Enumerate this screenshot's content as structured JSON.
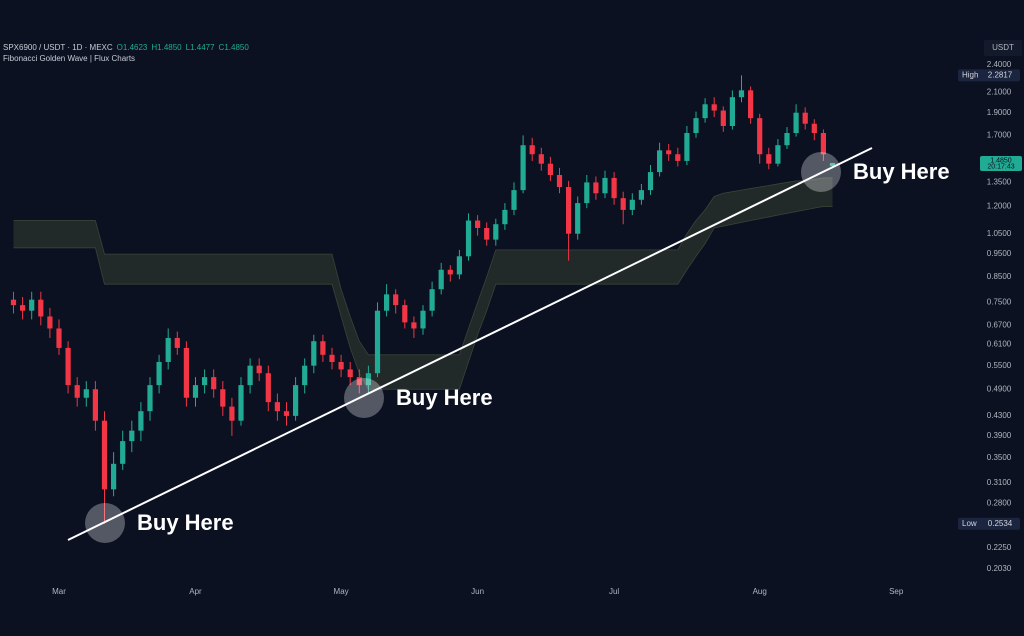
{
  "chart_data": {
    "type": "candlestick",
    "symbol": "SPX6900 / USDT · 1D · MEXC",
    "ohlc_legend": [
      "O1.4623",
      "H1.4850",
      "L1.4477",
      "C1.4850"
    ],
    "indicator": "Fibonacci Golden Wave | Flux Charts",
    "currency": "USDT",
    "categories": [
      null,
      null,
      null,
      null,
      null,
      "Mar",
      null,
      null,
      null,
      null,
      null,
      null,
      null,
      null,
      null,
      null,
      null,
      null,
      null,
      null,
      "Apr",
      null,
      null,
      null,
      null,
      null,
      null,
      null,
      null,
      null,
      null,
      null,
      null,
      null,
      null,
      null,
      "May",
      null,
      null,
      null,
      null,
      null,
      null,
      null,
      null,
      null,
      null,
      null,
      null,
      null,
      null,
      "Jun",
      null,
      null,
      null,
      null,
      null,
      null,
      null,
      null,
      null,
      null,
      null,
      null,
      null,
      null,
      "Jul",
      null,
      null,
      null,
      null,
      null,
      null,
      null,
      null,
      null,
      null,
      null,
      null,
      null,
      null,
      null,
      "Aug",
      null,
      null,
      null,
      null,
      null,
      null,
      null,
      null,
      null,
      null,
      null,
      null,
      null,
      null,
      "Sep"
    ],
    "open": [
      0.76,
      0.74,
      0.72,
      0.76,
      0.7,
      0.66,
      0.6,
      0.5,
      0.47,
      0.49,
      0.42,
      0.3,
      0.34,
      0.38,
      0.4,
      0.44,
      0.5,
      0.56,
      0.63,
      0.6,
      0.47,
      0.5,
      0.52,
      0.49,
      0.45,
      0.42,
      0.5,
      0.55,
      0.53,
      0.46,
      0.44,
      0.43,
      0.5,
      0.55,
      0.62,
      0.58,
      0.56,
      0.54,
      0.52,
      0.5,
      0.53,
      0.72,
      0.78,
      0.74,
      0.68,
      0.66,
      0.72,
      0.8,
      0.88,
      0.86,
      0.94,
      1.12,
      1.08,
      1.02,
      1.1,
      1.18,
      1.3,
      1.62,
      1.55,
      1.48,
      1.4,
      1.32,
      1.05,
      1.22,
      1.35,
      1.28,
      1.38,
      1.25,
      1.18,
      1.24,
      1.3,
      1.42,
      1.58,
      1.55,
      1.5,
      1.72,
      1.85,
      1.98,
      1.92,
      1.78,
      2.05,
      2.12,
      1.85,
      1.55,
      1.48,
      1.62,
      1.72,
      1.9,
      1.8,
      1.72,
      1.4623,
      null,
      null,
      null,
      null,
      null,
      null,
      null
    ],
    "high": [
      0.79,
      0.77,
      0.79,
      0.79,
      0.73,
      0.69,
      0.62,
      0.52,
      0.51,
      0.51,
      0.44,
      0.36,
      0.4,
      0.42,
      0.46,
      0.52,
      0.58,
      0.66,
      0.65,
      0.62,
      0.52,
      0.54,
      0.54,
      0.51,
      0.47,
      0.52,
      0.57,
      0.57,
      0.55,
      0.48,
      0.46,
      0.52,
      0.57,
      0.64,
      0.64,
      0.6,
      0.58,
      0.56,
      0.54,
      0.55,
      0.75,
      0.82,
      0.8,
      0.76,
      0.7,
      0.74,
      0.83,
      0.91,
      0.9,
      0.97,
      1.16,
      1.15,
      1.11,
      1.13,
      1.22,
      1.35,
      1.7,
      1.68,
      1.6,
      1.53,
      1.45,
      1.36,
      1.26,
      1.4,
      1.39,
      1.43,
      1.42,
      1.29,
      1.28,
      1.34,
      1.47,
      1.64,
      1.63,
      1.6,
      1.78,
      1.91,
      2.04,
      2.05,
      1.96,
      2.12,
      2.2817,
      2.16,
      1.89,
      1.6,
      1.67,
      1.77,
      1.98,
      1.95,
      1.84,
      1.75,
      1.485,
      null,
      null,
      null,
      null,
      null,
      null,
      null
    ],
    "low": [
      0.71,
      0.69,
      0.69,
      0.67,
      0.63,
      0.58,
      0.48,
      0.45,
      0.45,
      0.4,
      0.2534,
      0.29,
      0.33,
      0.36,
      0.38,
      0.42,
      0.48,
      0.54,
      0.58,
      0.45,
      0.45,
      0.48,
      0.47,
      0.43,
      0.39,
      0.41,
      0.48,
      0.51,
      0.44,
      0.42,
      0.41,
      0.42,
      0.48,
      0.53,
      0.56,
      0.54,
      0.52,
      0.5,
      0.48,
      0.48,
      0.52,
      0.7,
      0.71,
      0.66,
      0.63,
      0.64,
      0.7,
      0.78,
      0.83,
      0.84,
      0.92,
      1.04,
      0.99,
      0.99,
      1.07,
      1.15,
      1.28,
      1.5,
      1.43,
      1.36,
      1.28,
      0.92,
      1.02,
      1.19,
      1.24,
      1.25,
      1.21,
      1.1,
      1.15,
      1.21,
      1.27,
      1.39,
      1.5,
      1.46,
      1.47,
      1.68,
      1.81,
      1.86,
      1.73,
      1.75,
      2.0,
      1.8,
      1.48,
      1.44,
      1.46,
      1.59,
      1.69,
      1.75,
      1.66,
      1.5,
      1.4477,
      null,
      null,
      null,
      null,
      null,
      null,
      null
    ],
    "close": [
      0.74,
      0.72,
      0.76,
      0.7,
      0.66,
      0.6,
      0.5,
      0.47,
      0.49,
      0.42,
      0.3,
      0.34,
      0.38,
      0.4,
      0.44,
      0.5,
      0.56,
      0.63,
      0.6,
      0.47,
      0.5,
      0.52,
      0.49,
      0.45,
      0.42,
      0.5,
      0.55,
      0.53,
      0.46,
      0.44,
      0.43,
      0.5,
      0.55,
      0.62,
      0.58,
      0.56,
      0.54,
      0.52,
      0.5,
      0.53,
      0.72,
      0.78,
      0.74,
      0.68,
      0.66,
      0.72,
      0.8,
      0.88,
      0.86,
      0.94,
      1.12,
      1.08,
      1.02,
      1.1,
      1.18,
      1.3,
      1.62,
      1.55,
      1.48,
      1.4,
      1.32,
      1.05,
      1.22,
      1.35,
      1.28,
      1.38,
      1.25,
      1.18,
      1.24,
      1.3,
      1.42,
      1.58,
      1.55,
      1.5,
      1.72,
      1.85,
      1.98,
      1.92,
      1.78,
      2.05,
      2.12,
      1.85,
      1.55,
      1.48,
      1.62,
      1.72,
      1.9,
      1.8,
      1.72,
      1.55,
      1.485,
      null,
      null,
      null,
      null,
      null,
      null,
      null
    ],
    "up_color": "#22ab94",
    "down_color": "#f23645",
    "band": {
      "color": "#262f2a",
      "upper": [
        1.12,
        1.12,
        1.12,
        1.12,
        1.12,
        1.12,
        1.12,
        1.12,
        1.12,
        1.12,
        0.95,
        0.95,
        0.95,
        0.95,
        0.95,
        0.95,
        0.95,
        0.95,
        0.95,
        0.95,
        0.95,
        0.95,
        0.95,
        0.95,
        0.95,
        0.95,
        0.95,
        0.95,
        0.95,
        0.95,
        0.95,
        0.95,
        0.95,
        0.95,
        0.95,
        0.95,
        0.8,
        0.7,
        0.62,
        0.58,
        0.58,
        0.58,
        0.58,
        0.58,
        0.58,
        0.58,
        0.58,
        0.58,
        0.58,
        0.58,
        0.66,
        0.75,
        0.85,
        0.97,
        0.97,
        0.97,
        0.97,
        0.97,
        0.97,
        0.97,
        0.97,
        0.97,
        0.97,
        0.97,
        0.97,
        0.97,
        0.97,
        0.97,
        0.97,
        0.97,
        0.97,
        0.97,
        0.97,
        0.97,
        1.05,
        1.12,
        1.18,
        1.26,
        1.28,
        1.29,
        1.3,
        1.31,
        1.32,
        1.33,
        1.34,
        1.35,
        1.36,
        1.36,
        1.37,
        1.38,
        1.38,
        null,
        null,
        null,
        null,
        null,
        null,
        null
      ],
      "lower": [
        0.98,
        0.98,
        0.98,
        0.98,
        0.98,
        0.98,
        0.98,
        0.98,
        0.98,
        0.98,
        0.82,
        0.82,
        0.82,
        0.82,
        0.82,
        0.82,
        0.82,
        0.82,
        0.82,
        0.82,
        0.82,
        0.82,
        0.82,
        0.82,
        0.82,
        0.82,
        0.82,
        0.82,
        0.82,
        0.82,
        0.82,
        0.82,
        0.82,
        0.82,
        0.82,
        0.82,
        0.7,
        0.6,
        0.53,
        0.49,
        0.49,
        0.49,
        0.49,
        0.49,
        0.49,
        0.49,
        0.49,
        0.49,
        0.49,
        0.49,
        0.56,
        0.64,
        0.72,
        0.82,
        0.82,
        0.82,
        0.82,
        0.82,
        0.82,
        0.82,
        0.82,
        0.82,
        0.82,
        0.82,
        0.82,
        0.82,
        0.82,
        0.82,
        0.82,
        0.82,
        0.82,
        0.82,
        0.82,
        0.82,
        0.88,
        0.94,
        1.0,
        1.08,
        1.09,
        1.1,
        1.11,
        1.12,
        1.13,
        1.14,
        1.15,
        1.16,
        1.17,
        1.18,
        1.19,
        1.2,
        1.2,
        null,
        null,
        null,
        null,
        null,
        null,
        null
      ]
    },
    "log_scale": true,
    "ylim": [
      0.1924,
      2.713
    ],
    "yticks": [
      {
        "value": 2.4,
        "label": "2.4000"
      },
      {
        "value": 2.1,
        "label": "2.1000"
      },
      {
        "value": 1.9,
        "label": "1.9000"
      },
      {
        "value": 1.7,
        "label": "1.7000"
      },
      {
        "value": 1.35,
        "label": "1.3500"
      },
      {
        "value": 1.2,
        "label": "1.2000"
      },
      {
        "value": 1.05,
        "label": "1.0500"
      },
      {
        "value": 0.95,
        "label": "0.9500"
      },
      {
        "value": 0.85,
        "label": "0.8500"
      },
      {
        "value": 0.75,
        "label": "0.7500"
      },
      {
        "value": 0.67,
        "label": "0.6700"
      },
      {
        "value": 0.61,
        "label": "0.6100"
      },
      {
        "value": 0.55,
        "label": "0.5500"
      },
      {
        "value": 0.49,
        "label": "0.4900"
      },
      {
        "value": 0.43,
        "label": "0.4300"
      },
      {
        "value": 0.39,
        "label": "0.3900"
      },
      {
        "value": 0.35,
        "label": "0.3500"
      },
      {
        "value": 0.31,
        "label": "0.3100"
      },
      {
        "value": 0.28,
        "label": "0.2800"
      },
      {
        "value": 0.225,
        "label": "0.2250"
      },
      {
        "value": 0.203,
        "label": "0.2030"
      }
    ],
    "high_marker": {
      "label": "High",
      "value": 2.2817
    },
    "low_marker": {
      "label": "Low",
      "value": 0.2534
    },
    "last_price": {
      "value": 1.485,
      "label": "1.4850"
    },
    "countdown": "20:17:43",
    "annotations": [
      "Buy Here",
      "Buy Here",
      "Buy Here"
    ]
  }
}
